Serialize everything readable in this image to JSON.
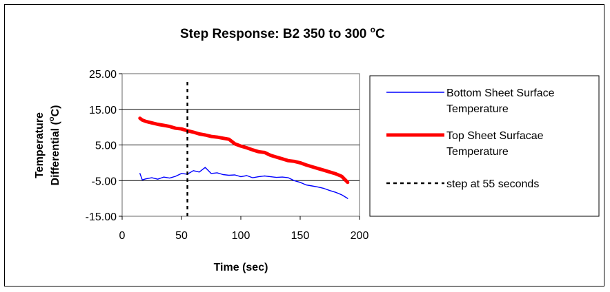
{
  "chart_data": {
    "type": "line",
    "title_main": "Step Response: B2 350 to 300 ",
    "title_degree": "o",
    "title_unit": "C",
    "xlabel": "Time (sec)",
    "ylabel_line1": "Temperature",
    "ylabel_line2_pre": "Differential (",
    "ylabel_degree": "o",
    "ylabel_line2_post": "C)",
    "xlim": [
      0,
      200
    ],
    "ylim": [
      -15,
      25
    ],
    "xticks": [
      0,
      50,
      100,
      150,
      200
    ],
    "xtick_labels": [
      "0",
      "50",
      "100",
      "150",
      "200"
    ],
    "yticks": [
      -15,
      -5,
      5,
      15,
      25
    ],
    "ytick_labels": [
      "-15.00",
      "-5.00",
      "5.00",
      "15.00",
      "25.00"
    ],
    "grid": "horizontal",
    "legend_position": "right",
    "series": [
      {
        "name": "Bottom Sheet Surface Temperature",
        "legend_line1": "Bottom Sheet Surface",
        "legend_line2": "Temperature",
        "color": "#0000ff",
        "x": [
          15,
          17,
          20,
          25,
          30,
          35,
          40,
          45,
          50,
          55,
          60,
          65,
          70,
          75,
          80,
          85,
          90,
          95,
          100,
          105,
          110,
          115,
          120,
          125,
          130,
          135,
          140,
          145,
          150,
          155,
          160,
          165,
          170,
          175,
          180,
          185,
          190
        ],
        "y": [
          -3.0,
          -4.8,
          -4.5,
          -4.2,
          -4.6,
          -4.0,
          -4.3,
          -3.8,
          -3.0,
          -3.2,
          -2.2,
          -2.6,
          -1.3,
          -3.0,
          -2.8,
          -3.3,
          -3.5,
          -3.4,
          -3.9,
          -3.6,
          -4.2,
          -3.9,
          -3.7,
          -3.9,
          -4.1,
          -4.0,
          -4.2,
          -5.0,
          -5.5,
          -6.2,
          -6.5,
          -6.8,
          -7.2,
          -7.8,
          -8.3,
          -9.0,
          -10.0
        ]
      },
      {
        "name": "Top Sheet Surfacae Temperature",
        "legend_line1": "Top Sheet Surfacae",
        "legend_line2": "Temperature",
        "color": "#ff0000",
        "x": [
          15,
          17,
          20,
          25,
          30,
          35,
          40,
          45,
          50,
          55,
          60,
          65,
          70,
          75,
          80,
          85,
          90,
          95,
          100,
          105,
          110,
          115,
          120,
          125,
          130,
          135,
          140,
          145,
          150,
          155,
          160,
          165,
          170,
          175,
          180,
          185,
          190
        ],
        "y": [
          12.5,
          12.0,
          11.6,
          11.2,
          10.8,
          10.5,
          10.2,
          9.7,
          9.5,
          9.0,
          8.6,
          8.1,
          7.8,
          7.4,
          7.2,
          6.9,
          6.6,
          5.3,
          4.7,
          4.2,
          3.6,
          3.1,
          2.9,
          2.1,
          1.6,
          1.1,
          0.6,
          0.4,
          0.0,
          -0.6,
          -1.1,
          -1.6,
          -2.1,
          -2.6,
          -3.1,
          -3.8,
          -5.5
        ]
      }
    ],
    "vline": {
      "name": "step at 55 seconds",
      "x": 55,
      "color": "#000000"
    }
  }
}
